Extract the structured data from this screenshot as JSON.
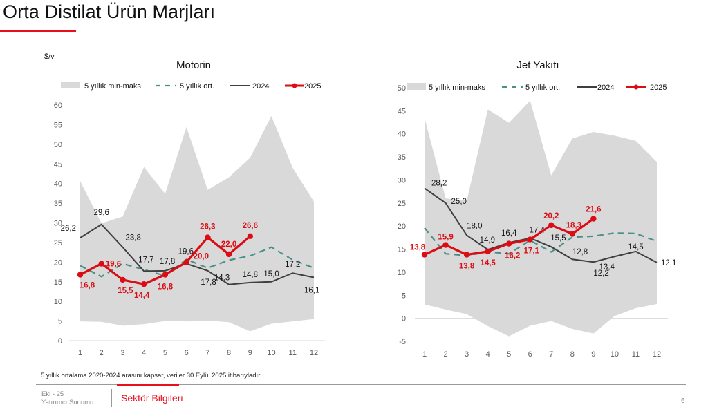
{
  "page": {
    "title": "Orta Distilat Ürün Marjları",
    "unit_label": "$/v",
    "footnote": "5 yıllık ortalama 2020-2024 arasını kapsar, veriler 30 Eylül 2025 itibarıyladır.",
    "footer": {
      "date": "Eki - 25",
      "subtitle": "Yatırımcı Sunumu",
      "section": "Sektör Bilgileri",
      "page_number": "6"
    }
  },
  "colors": {
    "band": "#d9d9d9",
    "avg": "#4a9089",
    "y2024": "#3f3f3f",
    "y2025": "#dc0c14",
    "accent": "#e8101c"
  },
  "legend": {
    "band": "5 yıllık min-maks",
    "avg": "5 yıllık ort.",
    "y2024": "2024",
    "y2025": "2025"
  },
  "chart_data": [
    {
      "type": "line",
      "title": "Motorin",
      "xlabel": "",
      "ylabel": "$/v",
      "categories": [
        "1",
        "2",
        "3",
        "4",
        "5",
        "6",
        "7",
        "8",
        "9",
        "10",
        "11",
        "12"
      ],
      "yticks": [
        0,
        5,
        10,
        15,
        20,
        25,
        30,
        35,
        40,
        45,
        50,
        55,
        60
      ],
      "ylim": [
        0,
        60
      ],
      "grid": false,
      "legend_position": "top",
      "series": [
        {
          "name": "5 yıllık min-maks (max)",
          "kind": "band-upper",
          "values": [
            40.6,
            29.9,
            31.6,
            44.2,
            37.4,
            54.4,
            38.4,
            41.6,
            46.6,
            57.2,
            44.0,
            35.4
          ]
        },
        {
          "name": "5 yıllık min-maks (min)",
          "kind": "band-lower",
          "values": [
            4.9,
            4.8,
            3.8,
            4.2,
            5.0,
            4.9,
            5.1,
            4.7,
            2.4,
            4.3,
            4.9,
            5.5
          ]
        },
        {
          "name": "5 yıllık ort.",
          "kind": "avg",
          "values": [
            19.1,
            16.3,
            19.6,
            18.1,
            16.5,
            20.7,
            18.5,
            20.5,
            21.6,
            23.8,
            20.6,
            18.5
          ]
        },
        {
          "name": "2024",
          "kind": "y2024",
          "values": [
            26.2,
            29.6,
            23.8,
            17.7,
            17.8,
            19.6,
            17.8,
            14.3,
            14.8,
            15.0,
            17.2,
            16.1
          ],
          "labels": [
            "26,2",
            "29,6",
            "23,8",
            "17,7",
            "17,8",
            "19,6",
            "17,8",
            "14,3",
            "14,8",
            "15,0",
            "17,2",
            "16,1"
          ]
        },
        {
          "name": "2025",
          "kind": "y2025",
          "values": [
            16.8,
            19.6,
            15.5,
            14.4,
            16.8,
            20.0,
            26.3,
            22.0,
            26.6
          ],
          "labels": [
            "16,8",
            "19,6",
            "15,5",
            "14,4",
            "16,8",
            "20,0",
            "26,3",
            "22,0",
            "26,6"
          ]
        }
      ]
    },
    {
      "type": "line",
      "title": "Jet Yakıtı",
      "xlabel": "",
      "ylabel": "$/v",
      "categories": [
        "1",
        "2",
        "3",
        "4",
        "5",
        "6",
        "7",
        "8",
        "9",
        "10",
        "11",
        "12"
      ],
      "yticks": [
        -5,
        0,
        5,
        10,
        15,
        20,
        25,
        30,
        35,
        40,
        45,
        50
      ],
      "ylim": [
        -5,
        50
      ],
      "grid": false,
      "legend_position": "top",
      "series": [
        {
          "name": "5 yıllık min-maks (max)",
          "kind": "band-upper",
          "values": [
            43.5,
            26.0,
            25.5,
            45.3,
            42.4,
            47.2,
            31.0,
            39.0,
            40.4,
            39.6,
            38.5,
            33.9
          ]
        },
        {
          "name": "5 yıllık min-maks (min)",
          "kind": "band-lower",
          "values": [
            3.0,
            1.9,
            0.9,
            -1.7,
            -3.9,
            -1.6,
            -0.6,
            -2.3,
            -3.3,
            0.5,
            2.2,
            3.1
          ]
        },
        {
          "name": "5 yıllık ort.",
          "kind": "avg",
          "values": [
            19.6,
            14.0,
            13.6,
            14.4,
            14.0,
            16.9,
            14.4,
            17.6,
            17.8,
            18.5,
            18.4,
            16.7
          ]
        },
        {
          "name": "2024",
          "kind": "y2024",
          "values": [
            28.2,
            25.0,
            18.0,
            14.9,
            16.4,
            17.4,
            15.5,
            12.8,
            12.2,
            13.4,
            14.5,
            12.1
          ],
          "labels": [
            "28,2",
            "25,0",
            "18,0",
            "14,9",
            "16,4",
            "17,4",
            "15,5",
            "12,8",
            "12,2",
            "13,4",
            "14,5",
            "12,1"
          ]
        },
        {
          "name": "2025",
          "kind": "y2025",
          "values": [
            13.8,
            15.9,
            13.8,
            14.5,
            16.2,
            17.1,
            20.2,
            18.3,
            21.6
          ],
          "labels": [
            "13,8",
            "15,9",
            "13,8",
            "14,5",
            "16,2",
            "17,1",
            "20,2",
            "18,3",
            "21,6"
          ]
        }
      ]
    }
  ]
}
